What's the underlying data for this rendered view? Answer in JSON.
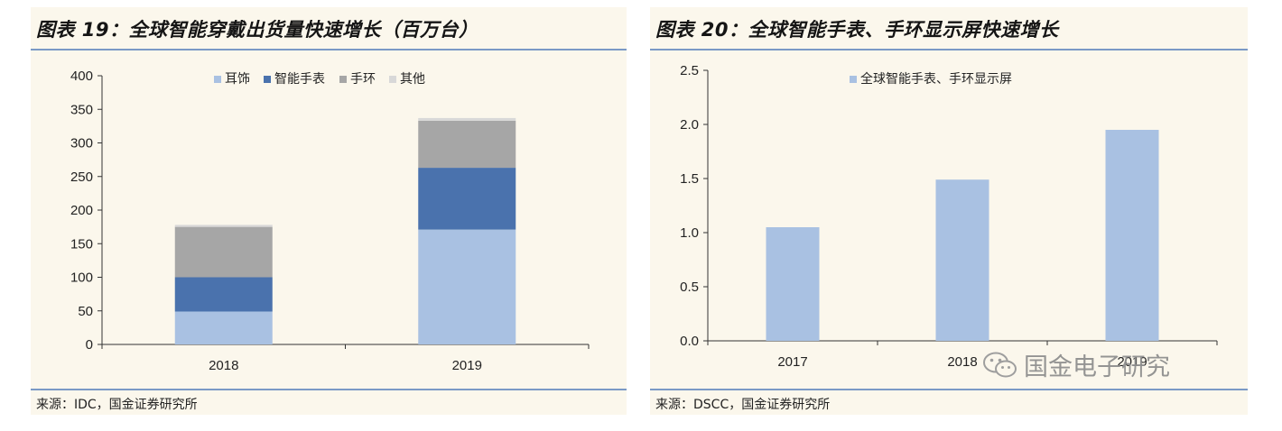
{
  "panels": [
    {
      "title": "图表 19：全球智能穿戴出货量快速增长（百万台）",
      "source": "来源：IDC，国金证券研究所"
    },
    {
      "title": "图表 20：全球智能手表、手环显示屏快速增长",
      "source": "来源：DSCC，国金证券研究所"
    }
  ],
  "watermark": {
    "text": "国金电子研究",
    "icon": "wechat-icon"
  },
  "chart_data": [
    {
      "type": "bar",
      "stacked": true,
      "categories": [
        "2018",
        "2019"
      ],
      "series": [
        {
          "name": "耳饰",
          "values": [
            49,
            171
          ],
          "color": "#a9c1e2"
        },
        {
          "name": "智能手表",
          "values": [
            51,
            92
          ],
          "color": "#4a72ad"
        },
        {
          "name": "手环",
          "values": [
            75,
            70
          ],
          "color": "#a6a6a6"
        },
        {
          "name": "其他",
          "values": [
            3,
            4
          ],
          "color": "#d8d8d8"
        }
      ],
      "ylim": [
        0,
        400
      ],
      "yticks": [
        "0",
        "50",
        "100",
        "150",
        "200",
        "250",
        "300",
        "350",
        "400"
      ],
      "grid": false,
      "legend": "top-center"
    },
    {
      "type": "bar",
      "categories": [
        "2017",
        "2018",
        "2019"
      ],
      "series": [
        {
          "name": "全球智能手表、手环显示屏",
          "values": [
            1.05,
            1.49,
            1.95
          ],
          "color": "#a9c1e2"
        }
      ],
      "ylim": [
        0,
        2.5
      ],
      "yticks": [
        "0.0",
        "0.5",
        "1.0",
        "1.5",
        "2.0",
        "2.5"
      ],
      "grid": false,
      "legend": "top-center"
    }
  ]
}
